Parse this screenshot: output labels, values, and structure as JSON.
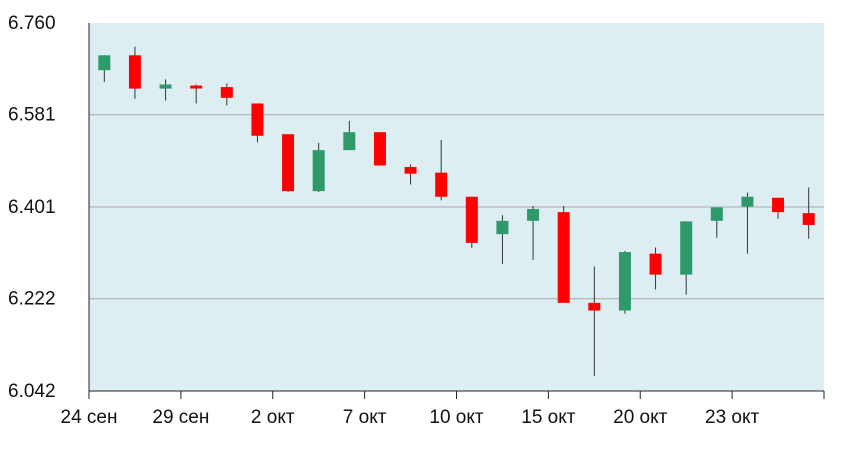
{
  "chart_data": {
    "type": "candlestick",
    "title": "",
    "xlabel": "",
    "ylabel": "",
    "ylim": [
      6.042,
      6.76
    ],
    "y_ticks": [
      "6.760",
      "6.581",
      "6.401",
      "6.222",
      "6.042"
    ],
    "x_tick_labels": [
      {
        "label": "24 сен",
        "index": 0
      },
      {
        "label": "29 сен",
        "index": 3
      },
      {
        "label": "2 окт",
        "index": 6
      },
      {
        "label": "7 окт",
        "index": 9
      },
      {
        "label": "10 окт",
        "index": 12
      },
      {
        "label": "15 окт",
        "index": 15
      },
      {
        "label": "20 окт",
        "index": 18
      },
      {
        "label": "23 окт",
        "index": 21
      }
    ],
    "grid": true,
    "background_color": "#ddeef3",
    "up_color": "#2e9a6a",
    "down_color": "#ff0000",
    "candles": [
      {
        "open": 6.668,
        "close": 6.697,
        "high": 6.697,
        "low": 6.645
      },
      {
        "open": 6.697,
        "close": 6.632,
        "high": 6.714,
        "low": 6.612
      },
      {
        "open": 6.632,
        "close": 6.64,
        "high": 6.65,
        "low": 6.609
      },
      {
        "open": 6.638,
        "close": 6.636,
        "high": 6.64,
        "low": 6.603
      },
      {
        "open": 6.635,
        "close": 6.614,
        "high": 6.642,
        "low": 6.599
      },
      {
        "open": 6.603,
        "close": 6.54,
        "high": 6.603,
        "low": 6.527
      },
      {
        "open": 6.543,
        "close": 6.432,
        "high": 6.543,
        "low": 6.43
      },
      {
        "open": 6.432,
        "close": 6.512,
        "high": 6.526,
        "low": 6.43
      },
      {
        "open": 6.512,
        "close": 6.547,
        "high": 6.569,
        "low": 6.512
      },
      {
        "open": 6.547,
        "close": 6.482,
        "high": 6.547,
        "low": 6.482
      },
      {
        "open": 6.479,
        "close": 6.466,
        "high": 6.484,
        "low": 6.445
      },
      {
        "open": 6.468,
        "close": 6.421,
        "high": 6.532,
        "low": 6.414
      },
      {
        "open": 6.421,
        "close": 6.331,
        "high": 6.421,
        "low": 6.321
      },
      {
        "open": 6.348,
        "close": 6.374,
        "high": 6.385,
        "low": 6.29
      },
      {
        "open": 6.374,
        "close": 6.397,
        "high": 6.403,
        "low": 6.298
      },
      {
        "open": 6.391,
        "close": 6.214,
        "high": 6.403,
        "low": 6.214
      },
      {
        "open": 6.214,
        "close": 6.199,
        "high": 6.285,
        "low": 6.071
      },
      {
        "open": 6.199,
        "close": 6.313,
        "high": 6.315,
        "low": 6.193
      },
      {
        "open": 6.31,
        "close": 6.269,
        "high": 6.322,
        "low": 6.24
      },
      {
        "open": 6.269,
        "close": 6.373,
        "high": 6.373,
        "low": 6.23
      },
      {
        "open": 6.374,
        "close": 6.4,
        "high": 6.4,
        "low": 6.341
      },
      {
        "open": 6.402,
        "close": 6.421,
        "high": 6.429,
        "low": 6.31
      },
      {
        "open": 6.419,
        "close": 6.391,
        "high": 6.419,
        "low": 6.378
      },
      {
        "open": 6.389,
        "close": 6.366,
        "high": 6.439,
        "low": 6.339
      }
    ]
  }
}
